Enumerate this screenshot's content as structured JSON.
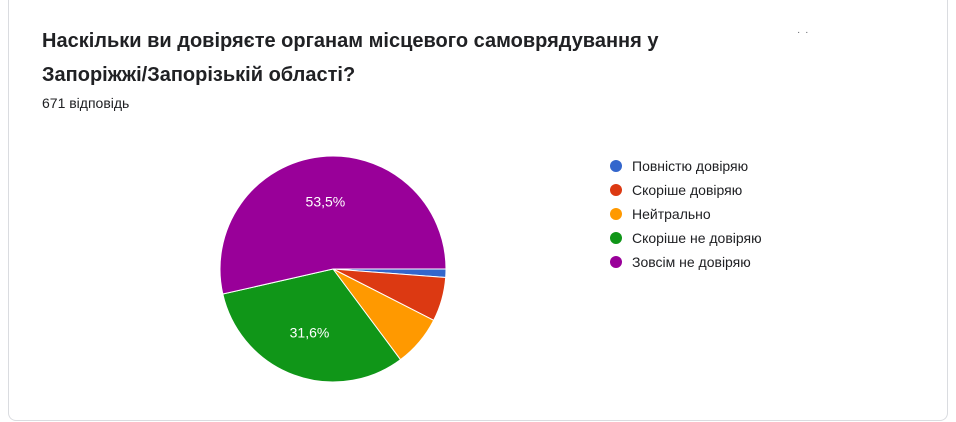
{
  "question": {
    "title": "Наскільки ви довіряєте органам місцевого самоврядування у Запоріжжі/Запорізькій області?",
    "response_count": "671 відповідь"
  },
  "chart_data": {
    "type": "pie",
    "categories": [
      "Повністю довіряю",
      "Скоріше довіряю",
      "Нейтрально",
      "Скоріше не довіряю",
      "Зовсім не довіряю"
    ],
    "values": [
      1.2,
      6.3,
      7.3,
      31.6,
      53.5
    ],
    "colors": [
      "#3366cc",
      "#dc3912",
      "#ff9900",
      "#109618",
      "#990099"
    ],
    "data_labels": [
      "",
      "",
      "",
      "31,6%",
      "53,5%"
    ],
    "legend_position": "right"
  }
}
